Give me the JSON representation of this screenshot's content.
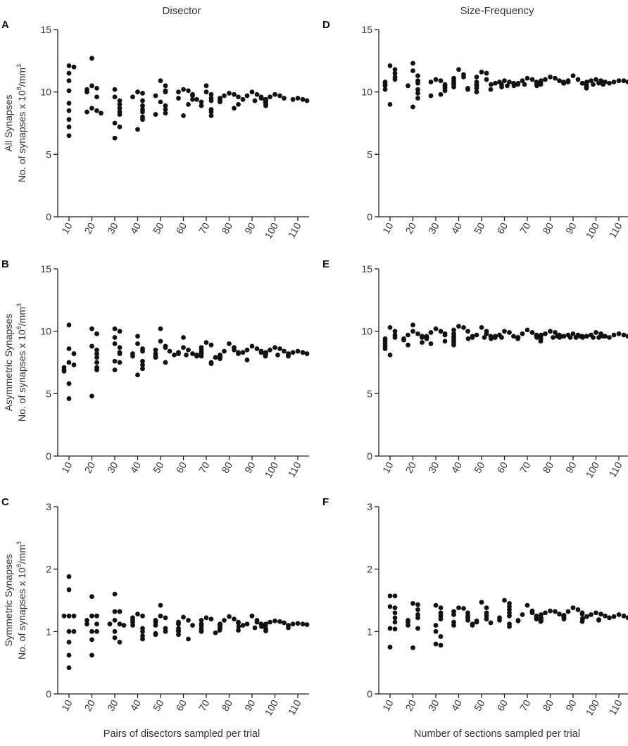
{
  "figure": {
    "column_titles": [
      "Disector",
      "Size-Frequency"
    ],
    "row_ylabels": [
      [
        "All Synapses",
        "No. of synapses x 10",
        "8",
        "/mm",
        "3"
      ],
      [
        "Asymmetric Synapses",
        "No. of synapses x 10",
        "8",
        "/mm",
        "3"
      ],
      [
        "Symmetric Synapses",
        "No. of synapses x 10",
        "8",
        "/mm",
        "3"
      ]
    ],
    "x_axis_titles": [
      "Pairs of disectors sampled per trial",
      "Number of sections sampled per trial"
    ]
  },
  "chart_data": [
    {
      "panel": "A",
      "type": "scatter",
      "categories": [
        "10",
        "20",
        "30",
        "40",
        "50",
        "60",
        "70",
        "80",
        "90",
        "100",
        "110"
      ],
      "ylim": [
        0,
        15
      ],
      "yticks": [
        0,
        5,
        10,
        15
      ],
      "points": [
        [
          12.1,
          12.0,
          11.5,
          10.9,
          10.1,
          9.1,
          8.5,
          7.8,
          7.2,
          6.5
        ],
        [
          12.7,
          10.5,
          10.3,
          10.2,
          10.0,
          9.6,
          8.7,
          8.5,
          8.4,
          8.3
        ],
        [
          10.2,
          9.6,
          9.3,
          9.0,
          8.7,
          8.4,
          8.2,
          7.5,
          7.2,
          6.3
        ],
        [
          10.0,
          9.9,
          9.6,
          9.3,
          8.9,
          8.6,
          8.4,
          8.0,
          7.8,
          7.0
        ],
        [
          10.9,
          10.5,
          10.1,
          10.0,
          9.7,
          9.2,
          8.9,
          8.6,
          8.3,
          8.2
        ],
        [
          10.2,
          10.1,
          10.0,
          9.8,
          9.7,
          9.5,
          9.4,
          9.0,
          9.4,
          8.1
        ],
        [
          10.5,
          10.0,
          9.8,
          9.5,
          9.3,
          9.2,
          8.9,
          8.6,
          8.4,
          8.1
        ],
        [
          9.9,
          9.8,
          9.7,
          9.6,
          9.5,
          9.4,
          9.3,
          9.2,
          9.0,
          8.7
        ],
        [
          10.0,
          9.8,
          9.7,
          9.6,
          9.5,
          9.4,
          9.4,
          9.3,
          9.2,
          9.3
        ],
        [
          9.8,
          9.7,
          9.6,
          9.5,
          9.4,
          9.3,
          9.2,
          9.1,
          9.0,
          8.9
        ],
        [
          9.5,
          9.4,
          9.4,
          9.3
        ]
      ]
    },
    {
      "panel": "B",
      "type": "scatter",
      "categories": [
        "10",
        "20",
        "30",
        "40",
        "50",
        "60",
        "70",
        "80",
        "90",
        "100",
        "110"
      ],
      "ylim": [
        0,
        15
      ],
      "yticks": [
        0,
        5,
        10,
        15
      ],
      "points": [
        [
          10.5,
          8.6,
          8.2,
          7.5,
          7.3,
          7.1,
          6.9,
          6.8,
          5.8,
          4.6
        ],
        [
          10.2,
          9.8,
          8.8,
          8.5,
          8.2,
          7.9,
          7.5,
          7.1,
          6.9,
          4.8
        ],
        [
          10.2,
          10.0,
          9.5,
          9.0,
          8.7,
          8.3,
          8.2,
          7.6,
          7.5,
          6.9
        ],
        [
          9.6,
          9.0,
          8.6,
          8.4,
          8.2,
          8.0,
          7.6,
          7.3,
          7.0,
          6.5
        ],
        [
          10.2,
          9.2,
          8.8,
          8.7,
          8.5,
          8.4,
          8.2,
          8.0,
          7.9,
          7.5
        ],
        [
          9.5,
          8.7,
          8.5,
          8.3,
          8.2,
          8.2,
          8.1,
          8.1,
          8.0,
          8.1
        ],
        [
          9.1,
          8.9,
          8.7,
          8.5,
          8.3,
          8.2,
          8.0,
          7.9,
          7.5,
          7.4
        ],
        [
          9.0,
          8.7,
          8.5,
          8.4,
          8.3,
          8.2,
          8.1,
          8.0,
          7.9,
          7.8
        ],
        [
          8.8,
          8.6,
          8.5,
          8.4,
          8.3,
          8.3,
          8.2,
          8.1,
          8.0,
          7.7
        ],
        [
          8.7,
          8.6,
          8.5,
          8.4,
          8.3,
          8.2,
          8.2,
          8.1,
          8.0,
          8.1
        ],
        [
          8.4,
          8.3,
          8.3,
          8.2
        ]
      ]
    },
    {
      "panel": "C",
      "type": "scatter",
      "categories": [
        "10",
        "20",
        "30",
        "40",
        "50",
        "60",
        "70",
        "80",
        "90",
        "100",
        "110"
      ],
      "ylim": [
        0,
        3
      ],
      "yticks": [
        0,
        1,
        2,
        3
      ],
      "points": [
        [
          1.88,
          1.67,
          1.25,
          1.25,
          1.25,
          1.0,
          1.0,
          0.83,
          0.62,
          0.42
        ],
        [
          1.56,
          1.25,
          1.25,
          1.18,
          1.12,
          1.12,
          1.0,
          1.0,
          0.87,
          0.62
        ],
        [
          1.6,
          1.32,
          1.32,
          1.18,
          1.12,
          1.12,
          1.1,
          1.0,
          0.9,
          0.83
        ],
        [
          1.28,
          1.25,
          1.22,
          1.18,
          1.15,
          1.1,
          1.05,
          1.0,
          0.93,
          0.88
        ],
        [
          1.42,
          1.25,
          1.22,
          1.18,
          1.15,
          1.1,
          1.05,
          1.0,
          0.97,
          0.95
        ],
        [
          1.23,
          1.18,
          1.15,
          1.12,
          1.1,
          1.05,
          1.02,
          1.0,
          0.95,
          0.88
        ],
        [
          1.22,
          1.2,
          1.18,
          1.12,
          1.1,
          1.05,
          1.02,
          1.0,
          0.98,
          1.02
        ],
        [
          1.24,
          1.2,
          1.18,
          1.15,
          1.14,
          1.12,
          1.1,
          1.08,
          1.05,
          1.02
        ],
        [
          1.25,
          1.18,
          1.15,
          1.12,
          1.12,
          1.1,
          1.1,
          1.08,
          1.08,
          1.06
        ],
        [
          1.17,
          1.16,
          1.15,
          1.14,
          1.12,
          1.1,
          1.08,
          1.06,
          1.04,
          1.01
        ],
        [
          1.13,
          1.12,
          1.12,
          1.11
        ]
      ]
    },
    {
      "panel": "D",
      "type": "scatter",
      "categories": [
        "10",
        "20",
        "30",
        "40",
        "50",
        "60",
        "70",
        "80",
        "90",
        "100",
        "110"
      ],
      "ylim": [
        0,
        15
      ],
      "yticks": [
        0,
        5,
        10,
        15
      ],
      "points": [
        [
          12.1,
          11.8,
          11.5,
          11.2,
          11.0,
          10.8,
          10.6,
          10.5,
          10.2,
          9.0
        ],
        [
          12.3,
          11.7,
          11.3,
          10.9,
          10.7,
          10.5,
          10.2,
          9.9,
          9.5,
          8.8
        ],
        [
          11.0,
          10.9,
          10.8,
          10.6,
          10.5,
          10.4,
          10.3,
          10.1,
          9.8,
          9.7
        ],
        [
          11.8,
          11.4,
          11.2,
          11.1,
          10.9,
          10.7,
          10.6,
          10.4,
          10.3,
          10.2
        ],
        [
          11.6,
          11.5,
          11.2,
          11.0,
          10.8,
          10.6,
          10.5,
          10.3,
          10.2,
          10.0
        ],
        [
          10.9,
          10.8,
          10.8,
          10.7,
          10.7,
          10.6,
          10.6,
          10.5,
          10.6,
          10.4
        ],
        [
          11.1,
          11.0,
          10.9,
          10.8,
          10.7,
          10.7,
          10.6,
          10.6,
          10.5,
          10.6
        ],
        [
          11.2,
          11.1,
          11.0,
          10.9,
          10.9,
          10.8,
          10.7,
          10.7,
          10.6,
          10.5
        ],
        [
          11.3,
          11.0,
          10.9,
          10.8,
          10.7,
          10.7,
          10.6,
          10.5,
          10.4,
          10.3
        ],
        [
          11.0,
          10.9,
          10.9,
          10.8,
          10.8,
          10.7,
          10.7,
          10.7,
          10.6,
          10.6
        ],
        [
          10.9,
          10.9,
          10.8,
          10.8
        ]
      ]
    },
    {
      "panel": "E",
      "type": "scatter",
      "categories": [
        "10",
        "20",
        "30",
        "40",
        "50",
        "60",
        "70",
        "80",
        "90",
        "100",
        "110"
      ],
      "ylim": [
        0,
        15
      ],
      "yticks": [
        0,
        5,
        10,
        15
      ],
      "points": [
        [
          10.3,
          10.0,
          9.7,
          9.5,
          9.4,
          9.2,
          9.0,
          8.8,
          8.6,
          8.1
        ],
        [
          10.5,
          10.0,
          9.8,
          9.7,
          9.6,
          9.5,
          9.4,
          9.3,
          9.1,
          8.9
        ],
        [
          10.2,
          10.0,
          9.9,
          9.8,
          9.7,
          9.6,
          9.5,
          9.4,
          9.2,
          9.0
        ],
        [
          10.4,
          10.3,
          10.1,
          10.0,
          9.8,
          9.6,
          9.5,
          9.3,
          9.1,
          8.9
        ],
        [
          10.3,
          10.0,
          9.8,
          9.7,
          9.6,
          9.6,
          9.5,
          9.5,
          9.4,
          9.5
        ],
        [
          10.0,
          9.9,
          9.7,
          9.6,
          9.6,
          9.5,
          9.5,
          9.4,
          9.4,
          9.5
        ],
        [
          10.1,
          9.9,
          9.8,
          9.7,
          9.6,
          9.5,
          9.5,
          9.4,
          9.3,
          9.2
        ],
        [
          10.0,
          9.9,
          9.8,
          9.7,
          9.7,
          9.6,
          9.6,
          9.5,
          9.5,
          9.6
        ],
        [
          9.8,
          9.7,
          9.7,
          9.6,
          9.6,
          9.6,
          9.5,
          9.5,
          9.5,
          9.6
        ],
        [
          9.9,
          9.8,
          9.7,
          9.6,
          9.6,
          9.5,
          9.5,
          9.5,
          9.5,
          9.6
        ],
        [
          9.8,
          9.7,
          9.7,
          9.6
        ]
      ]
    },
    {
      "panel": "F",
      "type": "scatter",
      "categories": [
        "10",
        "20",
        "30",
        "40",
        "50",
        "60",
        "70",
        "80",
        "90",
        "100",
        "110"
      ],
      "ylim": [
        0,
        3
      ],
      "yticks": [
        0,
        1,
        2,
        3
      ],
      "points": [
        [
          1.57,
          1.57,
          1.4,
          1.38,
          1.3,
          1.22,
          1.15,
          1.05,
          1.04,
          0.75
        ],
        [
          1.45,
          1.43,
          1.35,
          1.27,
          1.22,
          1.18,
          1.15,
          1.1,
          1.05,
          0.74
        ],
        [
          1.42,
          1.38,
          1.3,
          1.25,
          1.2,
          1.1,
          1.0,
          0.92,
          0.8,
          0.78
        ],
        [
          1.38,
          1.37,
          1.32,
          1.3,
          1.27,
          1.25,
          1.22,
          1.18,
          1.15,
          1.1
        ],
        [
          1.47,
          1.38,
          1.3,
          1.25,
          1.2,
          1.17,
          1.15,
          1.14,
          1.12,
          1.1
        ],
        [
          1.5,
          1.45,
          1.4,
          1.35,
          1.3,
          1.25,
          1.22,
          1.18,
          1.12,
          1.08
        ],
        [
          1.42,
          1.33,
          1.3,
          1.27,
          1.25,
          1.22,
          1.2,
          1.18,
          1.17,
          1.16
        ],
        [
          1.33,
          1.32,
          1.3,
          1.28,
          1.27,
          1.25,
          1.22,
          1.2,
          1.18,
          1.17
        ],
        [
          1.38,
          1.35,
          1.32,
          1.3,
          1.28,
          1.26,
          1.25,
          1.22,
          1.2,
          1.16
        ],
        [
          1.3,
          1.28,
          1.27,
          1.25,
          1.24,
          1.22,
          1.21,
          1.2,
          1.19,
          1.18
        ],
        [
          1.27,
          1.25,
          1.24,
          1.22
        ]
      ]
    }
  ]
}
